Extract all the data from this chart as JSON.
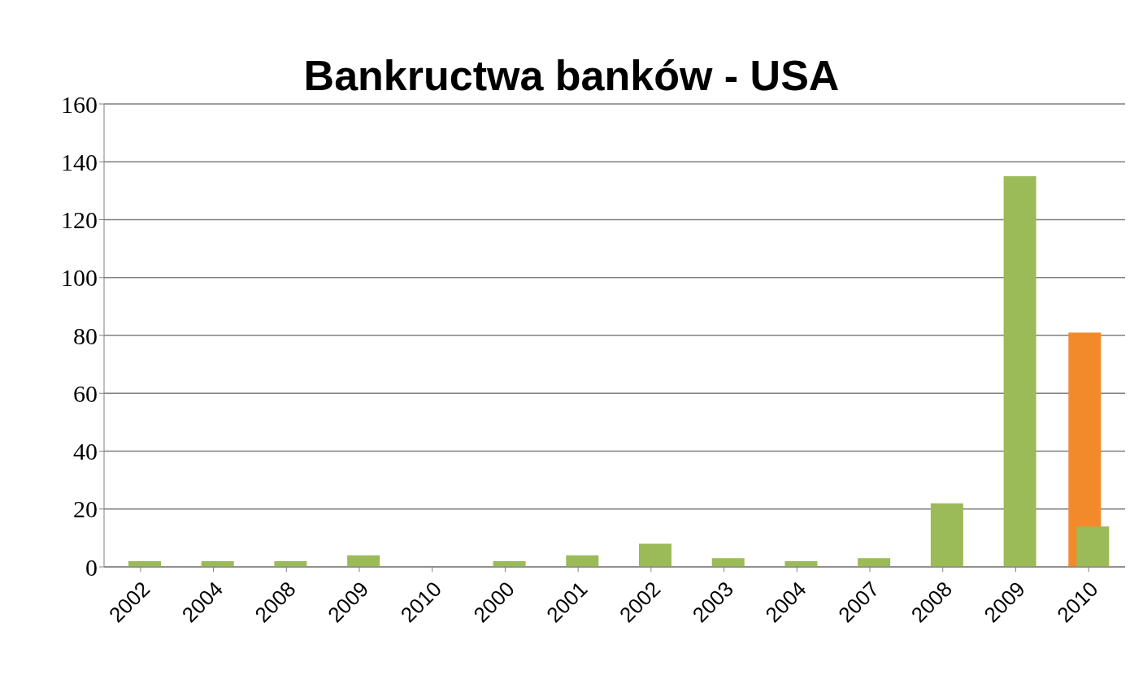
{
  "chart_data": {
    "type": "bar",
    "title": "Bankructwa banków - USA",
    "categories": [
      "2002",
      "2004",
      "2008",
      "2009",
      "2010",
      "2000",
      "2001",
      "2002",
      "2003",
      "2004",
      "2007",
      "2008",
      "2009",
      "2010"
    ],
    "series": [
      {
        "color": "#f28a2c",
        "values": [
          null,
          null,
          null,
          null,
          null,
          null,
          null,
          null,
          null,
          null,
          null,
          null,
          null,
          81
        ]
      },
      {
        "color": "#9bbb59",
        "values": [
          2,
          2,
          2,
          4,
          0,
          2,
          4,
          8,
          3,
          2,
          3,
          22,
          135,
          14
        ]
      }
    ],
    "ylim": [
      0,
      160
    ],
    "yticks": [
      0,
      20,
      40,
      60,
      80,
      100,
      120,
      140,
      160
    ],
    "grid": "y",
    "legend": false
  }
}
